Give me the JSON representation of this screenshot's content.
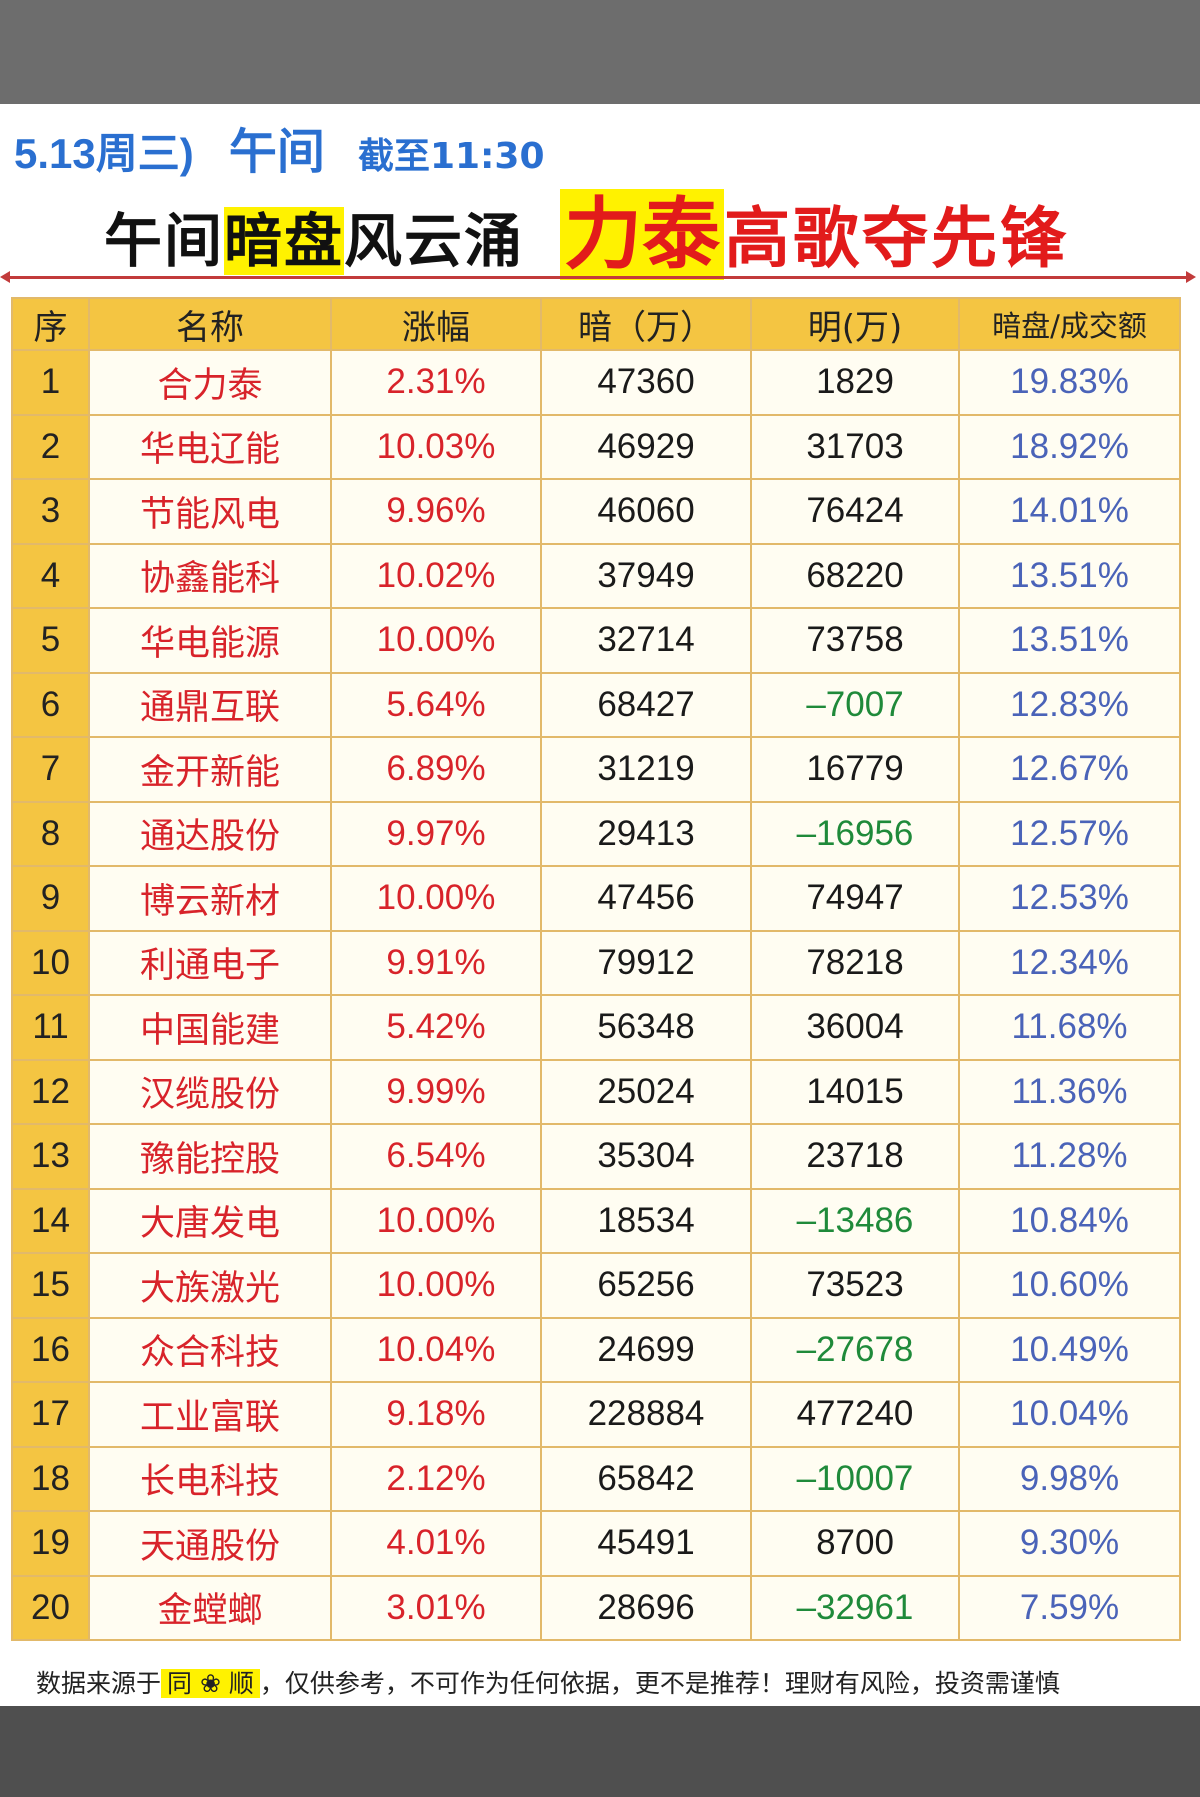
{
  "header": {
    "date": "5.13周三)",
    "session": "午间",
    "cutoff": "截至11:30",
    "title_part1": "午间",
    "title_highlight": "暗盘",
    "title_part2": "风云涌",
    "headline_highlight": "力泰",
    "headline_rest": "高歌夺先锋"
  },
  "table": {
    "columns": [
      "序",
      "名称",
      "涨幅",
      "暗（万）",
      "明(万)",
      "暗盘/成交额"
    ],
    "rows": [
      {
        "idx": "1",
        "name": "合力泰",
        "change": "2.31%",
        "dark": "47360",
        "lit": "1829",
        "ratio": "19.83%",
        "lit_negative": false
      },
      {
        "idx": "2",
        "name": "华电辽能",
        "change": "10.03%",
        "dark": "46929",
        "lit": "31703",
        "ratio": "18.92%",
        "lit_negative": false
      },
      {
        "idx": "3",
        "name": "节能风电",
        "change": "9.96%",
        "dark": "46060",
        "lit": "76424",
        "ratio": "14.01%",
        "lit_negative": false
      },
      {
        "idx": "4",
        "name": "协鑫能科",
        "change": "10.02%",
        "dark": "37949",
        "lit": "68220",
        "ratio": "13.51%",
        "lit_negative": false
      },
      {
        "idx": "5",
        "name": "华电能源",
        "change": "10.00%",
        "dark": "32714",
        "lit": "73758",
        "ratio": "13.51%",
        "lit_negative": false
      },
      {
        "idx": "6",
        "name": "通鼎互联",
        "change": "5.64%",
        "dark": "68427",
        "lit": "–7007",
        "ratio": "12.83%",
        "lit_negative": true
      },
      {
        "idx": "7",
        "name": "金开新能",
        "change": "6.89%",
        "dark": "31219",
        "lit": "16779",
        "ratio": "12.67%",
        "lit_negative": false
      },
      {
        "idx": "8",
        "name": "通达股份",
        "change": "9.97%",
        "dark": "29413",
        "lit": "–16956",
        "ratio": "12.57%",
        "lit_negative": true
      },
      {
        "idx": "9",
        "name": "博云新材",
        "change": "10.00%",
        "dark": "47456",
        "lit": "74947",
        "ratio": "12.53%",
        "lit_negative": false
      },
      {
        "idx": "10",
        "name": "利通电子",
        "change": "9.91%",
        "dark": "79912",
        "lit": "78218",
        "ratio": "12.34%",
        "lit_negative": false
      },
      {
        "idx": "11",
        "name": "中国能建",
        "change": "5.42%",
        "dark": "56348",
        "lit": "36004",
        "ratio": "11.68%",
        "lit_negative": false
      },
      {
        "idx": "12",
        "name": "汉缆股份",
        "change": "9.99%",
        "dark": "25024",
        "lit": "14015",
        "ratio": "11.36%",
        "lit_negative": false
      },
      {
        "idx": "13",
        "name": "豫能控股",
        "change": "6.54%",
        "dark": "35304",
        "lit": "23718",
        "ratio": "11.28%",
        "lit_negative": false
      },
      {
        "idx": "14",
        "name": "大唐发电",
        "change": "10.00%",
        "dark": "18534",
        "lit": "–13486",
        "ratio": "10.84%",
        "lit_negative": true
      },
      {
        "idx": "15",
        "name": "大族激光",
        "change": "10.00%",
        "dark": "65256",
        "lit": "73523",
        "ratio": "10.60%",
        "lit_negative": false
      },
      {
        "idx": "16",
        "name": "众合科技",
        "change": "10.04%",
        "dark": "24699",
        "lit": "–27678",
        "ratio": "10.49%",
        "lit_negative": true
      },
      {
        "idx": "17",
        "name": "工业富联",
        "change": "9.18%",
        "dark": "228884",
        "lit": "477240",
        "ratio": "10.04%",
        "lit_negative": false
      },
      {
        "idx": "18",
        "name": "长电科技",
        "change": "2.12%",
        "dark": "65842",
        "lit": "–10007",
        "ratio": "9.98%",
        "lit_negative": true
      },
      {
        "idx": "19",
        "name": "天通股份",
        "change": "4.01%",
        "dark": "45491",
        "lit": "8700",
        "ratio": "9.30%",
        "lit_negative": false
      },
      {
        "idx": "20",
        "name": "金螳螂",
        "change": "3.01%",
        "dark": "28696",
        "lit": "–32961",
        "ratio": "7.59%",
        "lit_negative": true
      }
    ]
  },
  "footer": {
    "prefix": "数据来源于",
    "source": "同 ❀ 顺",
    "suffix": "，仅供参考，不可作为任何依据，更不是推荐！理财有风险，投资需谨慎"
  },
  "colors": {
    "header_blue": "#2a6fd0",
    "title_red": "#e21b1b",
    "highlight_yellow": "#fff200",
    "table_header_bg": "#f4c542",
    "negative_green": "#1f8a3a",
    "ratio_blue": "#4a63b8"
  }
}
